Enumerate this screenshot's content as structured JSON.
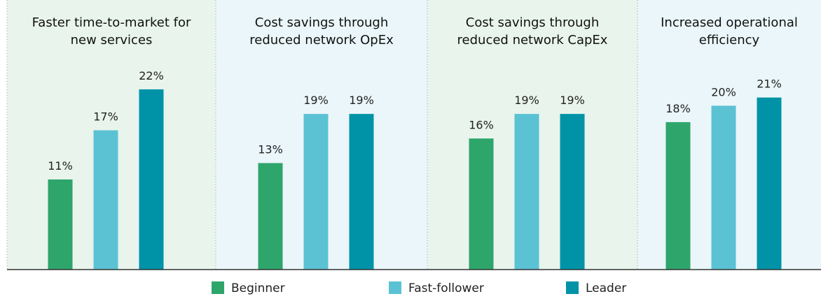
{
  "chart_data": {
    "type": "bar",
    "categories": [
      "Faster time-to-market for new services",
      "Cost savings through reduced network OpEx",
      "Cost savings through reduced network CapEx",
      "Increased operational efficiency"
    ],
    "series": [
      {
        "name": "Beginner",
        "color": "#2ea56b",
        "values": [
          11,
          13,
          16,
          18
        ],
        "value_labels": [
          "11%",
          "13%",
          "16%",
          "18%"
        ]
      },
      {
        "name": "Fast-follower",
        "color": "#5bc2d4",
        "values": [
          17,
          19,
          19,
          20
        ],
        "value_labels": [
          "17%",
          "19%",
          "19%",
          "20%"
        ]
      },
      {
        "name": "Leader",
        "color": "#0093a8",
        "values": [
          22,
          19,
          19,
          21
        ],
        "value_labels": [
          "22%",
          "19%",
          "19%",
          "21%"
        ]
      }
    ]
  }
}
